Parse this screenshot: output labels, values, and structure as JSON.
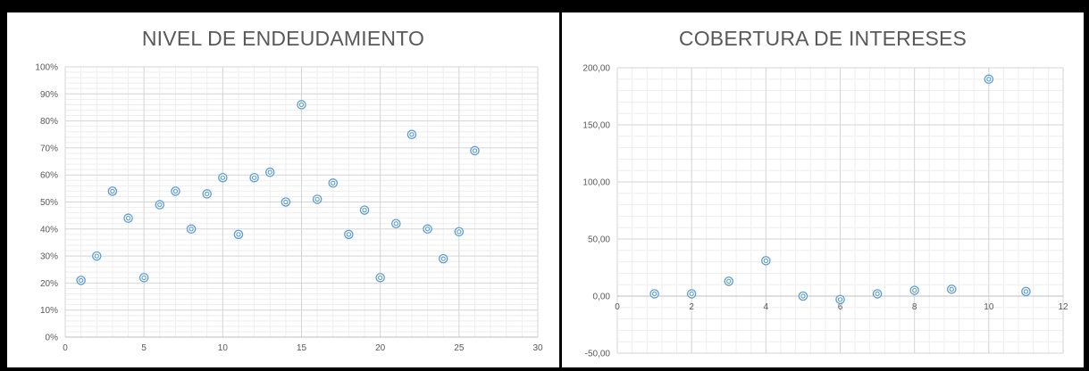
{
  "chart_data": [
    {
      "type": "scatter",
      "title": "NIVEL DE ENDEUDAMIENTO",
      "xlim": [
        0,
        30
      ],
      "ylim": [
        0,
        1
      ],
      "x_ticks": [
        0,
        5,
        10,
        15,
        20,
        25,
        30
      ],
      "x_tick_labels": [
        "0",
        "5",
        "10",
        "15",
        "20",
        "25",
        "30"
      ],
      "y_ticks": [
        0,
        0.1,
        0.2,
        0.3,
        0.4,
        0.5,
        0.6,
        0.7,
        0.8,
        0.9,
        1.0
      ],
      "y_tick_labels": [
        "0%",
        "10%",
        "20%",
        "30%",
        "40%",
        "50%",
        "60%",
        "70%",
        "80%",
        "90%",
        "100%"
      ],
      "grid": true,
      "marker_color": "#5b9bd5",
      "series": [
        {
          "x": [
            1,
            2,
            3,
            4,
            5,
            6,
            7,
            8,
            9,
            10,
            11,
            12,
            13,
            14,
            15,
            16,
            17,
            18,
            19,
            20,
            21,
            22,
            23,
            24,
            25,
            26
          ],
          "y": [
            0.21,
            0.3,
            0.54,
            0.44,
            0.22,
            0.49,
            0.54,
            0.4,
            0.53,
            0.59,
            0.38,
            0.59,
            0.61,
            0.5,
            0.86,
            0.51,
            0.57,
            0.38,
            0.47,
            0.22,
            0.42,
            0.75,
            0.4,
            0.29,
            0.39,
            0.69
          ]
        }
      ]
    },
    {
      "type": "scatter",
      "title": "COBERTURA DE INTERESES",
      "xlim": [
        0,
        12
      ],
      "ylim": [
        -50,
        200
      ],
      "x_ticks": [
        0,
        2,
        4,
        6,
        8,
        10,
        12
      ],
      "x_tick_labels": [
        "0",
        "2",
        "4",
        "6",
        "8",
        "10",
        "12"
      ],
      "y_ticks": [
        -50,
        0,
        50,
        100,
        150,
        200
      ],
      "y_tick_labels": [
        "-50,00",
        "0,00",
        "50,00",
        "100,00",
        "150,00",
        "200,00"
      ],
      "grid": true,
      "marker_color": "#5b9bd5",
      "series": [
        {
          "x": [
            1,
            2,
            3,
            4,
            5,
            6,
            7,
            8,
            9,
            10,
            11
          ],
          "y": [
            2,
            2,
            13,
            31,
            0,
            -3,
            2,
            5,
            6,
            190,
            4
          ]
        }
      ]
    }
  ]
}
